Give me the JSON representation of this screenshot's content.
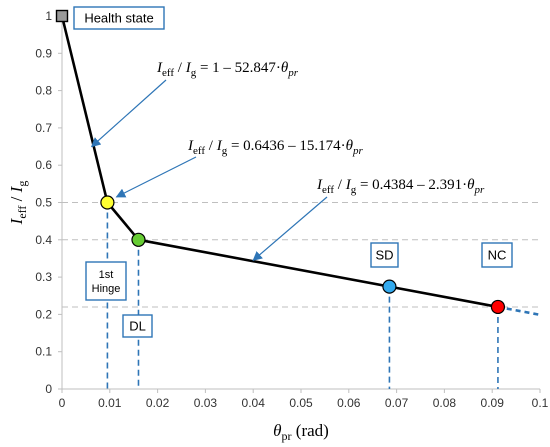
{
  "chart_data": {
    "type": "line",
    "xlim": [
      0,
      0.1
    ],
    "ylim": [
      0,
      1
    ],
    "x_ticks": [
      "0",
      "0.01",
      "0.02",
      "0.03",
      "0.04",
      "0.05",
      "0.06",
      "0.07",
      "0.08",
      "0.09",
      "0.1"
    ],
    "y_ticks": [
      "0",
      "0.1",
      "0.2",
      "0.3",
      "0.4",
      "0.5",
      "0.6",
      "0.7",
      "0.8",
      "0.9",
      "1"
    ],
    "x_ticks_values": [
      0,
      0.01,
      0.02,
      0.03,
      0.04,
      0.05,
      0.06,
      0.07,
      0.08,
      0.09,
      0.1
    ],
    "y_ticks_values": [
      0,
      0.1,
      0.2,
      0.3,
      0.4,
      0.5,
      0.6,
      0.7,
      0.8,
      0.9,
      1
    ],
    "grid_lines_y": [
      0.5,
      0.4,
      0.22
    ],
    "xlabel": {
      "main": "θ",
      "sub": "pr",
      "tail": " (rad)"
    },
    "ylabel": {
      "main1": "I",
      "sub1": "eff",
      "mid": " / ",
      "main2": "I",
      "sub2": "g"
    },
    "curve": {
      "x": [
        0,
        0.0095,
        0.016,
        0.0685,
        0.0912
      ],
      "y": [
        1,
        0.5,
        0.4,
        0.2745,
        0.22
      ]
    },
    "curve_extension": {
      "x": [
        0.0912,
        0.1
      ],
      "y": [
        0.22,
        0.1989
      ]
    },
    "points": [
      {
        "label": "Health state",
        "x": 0,
        "y": 1,
        "color": "#999999",
        "shape": "square"
      },
      {
        "label": "1st Hinge",
        "x": 0.0095,
        "y": 0.5,
        "color": "#ffff33"
      },
      {
        "label": "DL",
        "x": 0.016,
        "y": 0.4,
        "color": "#66cc33"
      },
      {
        "label": "SD",
        "x": 0.0685,
        "y": 0.2745,
        "color": "#33aaee"
      },
      {
        "label": "NC",
        "x": 0.0912,
        "y": 0.22,
        "color": "#ff0000"
      }
    ],
    "equations": [
      {
        "lhs_i1": "I",
        "lhs_s1": "eff",
        "slash": " / ",
        "lhs_i2": "I",
        "lhs_s2": "g",
        "rhs": " =  1 – 52.847·",
        "theta": "θ",
        "theta_sub": "pr",
        "arrow_to": {
          "x": 0.0062,
          "y": 0.65
        }
      },
      {
        "lhs_i1": "I",
        "lhs_s1": "eff",
        "slash": " / ",
        "lhs_i2": "I",
        "lhs_s2": "g",
        "rhs": " = 0.6436 – 15.174·",
        "theta": "θ",
        "theta_sub": "pr",
        "arrow_to": {
          "x": 0.0114,
          "y": 0.515
        }
      },
      {
        "lhs_i1": "I",
        "lhs_s1": "eff",
        "slash": " / ",
        "lhs_i2": "I",
        "lhs_s2": "g",
        "rhs": " = 0.4384 – 2.391·",
        "theta": "θ",
        "theta_sub": "pr",
        "arrow_to": {
          "x": 0.04,
          "y": 0.345
        }
      }
    ],
    "annotation_boxes": [
      {
        "lines": [
          "Health state"
        ]
      },
      {
        "lines": [
          "1st",
          "Hinge"
        ]
      },
      {
        "lines": [
          "DL"
        ]
      },
      {
        "lines": [
          "SD"
        ]
      },
      {
        "lines": [
          "NC"
        ]
      }
    ],
    "colors": {
      "curve": "#000000",
      "marker_lines": "#2e75b6",
      "arrows": "#2e75b6",
      "grid": "#bfbfbf",
      "box_border": "#2e75b6"
    }
  }
}
